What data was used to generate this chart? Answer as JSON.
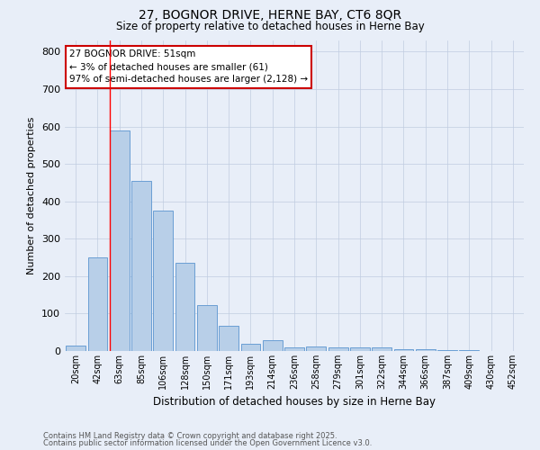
{
  "title1": "27, BOGNOR DRIVE, HERNE BAY, CT6 8QR",
  "title2": "Size of property relative to detached houses in Herne Bay",
  "xlabel": "Distribution of detached houses by size in Herne Bay",
  "ylabel": "Number of detached properties",
  "categories": [
    "20sqm",
    "42sqm",
    "63sqm",
    "85sqm",
    "106sqm",
    "128sqm",
    "150sqm",
    "171sqm",
    "193sqm",
    "214sqm",
    "236sqm",
    "258sqm",
    "279sqm",
    "301sqm",
    "322sqm",
    "344sqm",
    "366sqm",
    "387sqm",
    "409sqm",
    "430sqm",
    "452sqm"
  ],
  "values": [
    15,
    250,
    590,
    455,
    375,
    235,
    122,
    68,
    20,
    30,
    10,
    12,
    10,
    9,
    10,
    5,
    4,
    3,
    2,
    1,
    1
  ],
  "bar_color": "#b8cfe8",
  "bar_edge_color": "#6a9fd4",
  "background_color": "#e8eef8",
  "red_line_x": 1.55,
  "annotation_line1": "27 BOGNOR DRIVE: 51sqm",
  "annotation_line2": "← 3% of detached houses are smaller (61)",
  "annotation_line3": "97% of semi-detached houses are larger (2,128) →",
  "annotation_box_color": "#ffffff",
  "annotation_box_edge": "#cc0000",
  "ylim": [
    0,
    830
  ],
  "yticks": [
    0,
    100,
    200,
    300,
    400,
    500,
    600,
    700,
    800
  ],
  "footnote1": "Contains HM Land Registry data © Crown copyright and database right 2025.",
  "footnote2": "Contains public sector information licensed under the Open Government Licence v3.0."
}
